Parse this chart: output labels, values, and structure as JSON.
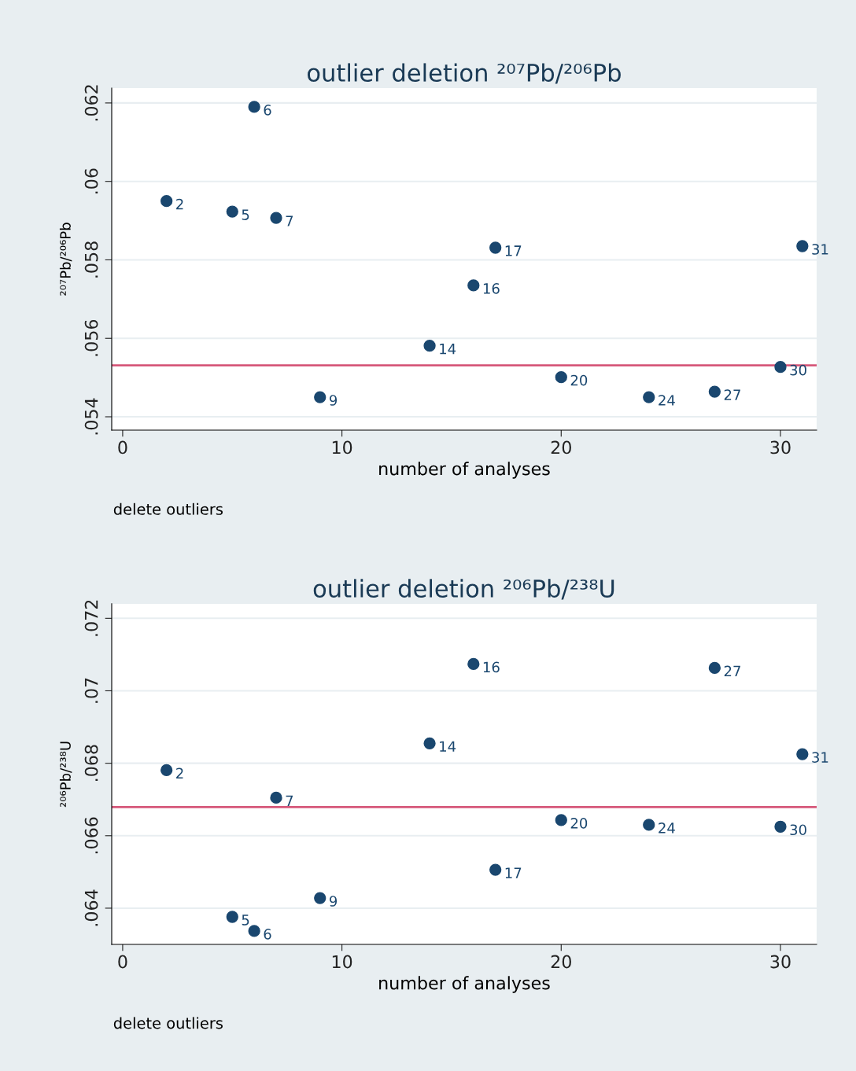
{
  "chart_data": [
    {
      "type": "scatter",
      "title": "outlier deletion ²⁰⁷Pb/²⁰⁶Pb",
      "xlabel": "number of analyses",
      "ylabel": "²⁰⁷Pb/²⁰⁶Pb",
      "x": [
        2,
        5,
        6,
        7,
        9,
        14,
        16,
        17,
        20,
        24,
        27,
        30,
        31
      ],
      "values": [
        0.0595,
        0.05923,
        0.0619,
        0.05907,
        0.0545,
        0.05581,
        0.05735,
        0.05831,
        0.05501,
        0.0545,
        0.05464,
        0.05527,
        0.05835
      ],
      "color": "#1a476f",
      "marker": "circle",
      "xlim": [
        -0.5,
        31.65
      ],
      "xticks": [
        0,
        10,
        20,
        30
      ],
      "ylim": [
        0.05366,
        0.06238
      ],
      "yticks": [
        {
          "value": 0.054,
          "label": ".054"
        },
        {
          "value": 0.056,
          "label": ".056"
        },
        {
          "value": 0.058,
          "label": ".058"
        },
        {
          "value": 0.06,
          "label": ".06"
        },
        {
          "value": 0.062,
          "label": ".062"
        }
      ],
      "grid": "y",
      "ref_lines": [
        {
          "axis": "y",
          "value": 0.05531,
          "color": "#d6587a"
        }
      ],
      "annotations": [
        {
          "text": "2",
          "x": 2,
          "y": 0.0595
        },
        {
          "text": "5",
          "x": 5,
          "y": 0.05923
        },
        {
          "text": "6",
          "x": 6,
          "y": 0.0619
        },
        {
          "text": "7",
          "x": 7,
          "y": 0.05907
        },
        {
          "text": "9",
          "x": 9,
          "y": 0.0545
        },
        {
          "text": "14",
          "x": 14,
          "y": 0.05581
        },
        {
          "text": "16",
          "x": 16,
          "y": 0.05735
        },
        {
          "text": "17",
          "x": 17,
          "y": 0.05831
        },
        {
          "text": "20",
          "x": 20,
          "y": 0.05501
        },
        {
          "text": "24",
          "x": 24,
          "y": 0.0545
        },
        {
          "text": "27",
          "x": 27,
          "y": 0.05464
        },
        {
          "text": "30",
          "x": 30,
          "y": 0.05527
        },
        {
          "text": "31",
          "x": 31,
          "y": 0.05835
        },
        "delete outliers"
      ]
    },
    {
      "type": "scatter",
      "title": "outlier deletion ²⁰⁶Pb/²³⁸U",
      "xlabel": "number of analyses",
      "ylabel": "²⁰⁶Pb/²³⁸U",
      "x": [
        2,
        5,
        6,
        7,
        9,
        14,
        16,
        17,
        20,
        24,
        27,
        30,
        31
      ],
      "values": [
        0.06781,
        0.06376,
        0.06337,
        0.06705,
        0.06428,
        0.06855,
        0.07074,
        0.06506,
        0.06643,
        0.0663,
        0.07063,
        0.06625,
        0.06825
      ],
      "color": "#1a476f",
      "marker": "circle",
      "xlim": [
        -0.5,
        31.65
      ],
      "xticks": [
        0,
        10,
        20,
        30
      ],
      "ylim": [
        0.063,
        0.0724
      ],
      "yticks": [
        {
          "value": 0.064,
          "label": ".064"
        },
        {
          "value": 0.066,
          "label": ".066"
        },
        {
          "value": 0.068,
          "label": ".068"
        },
        {
          "value": 0.07,
          "label": ".07"
        },
        {
          "value": 0.072,
          "label": ".072"
        }
      ],
      "grid": "y",
      "ref_lines": [
        {
          "axis": "y",
          "value": 0.06679,
          "color": "#d6587a"
        }
      ],
      "annotations": [
        {
          "text": "2",
          "x": 2,
          "y": 0.06781
        },
        {
          "text": "5",
          "x": 5,
          "y": 0.06376
        },
        {
          "text": "6",
          "x": 6,
          "y": 0.06337
        },
        {
          "text": "7",
          "x": 7,
          "y": 0.06705
        },
        {
          "text": "9",
          "x": 9,
          "y": 0.06428
        },
        {
          "text": "14",
          "x": 14,
          "y": 0.06855
        },
        {
          "text": "16",
          "x": 16,
          "y": 0.07074
        },
        {
          "text": "17",
          "x": 17,
          "y": 0.06506
        },
        {
          "text": "20",
          "x": 20,
          "y": 0.06643
        },
        {
          "text": "24",
          "x": 24,
          "y": 0.0663
        },
        {
          "text": "27",
          "x": 27,
          "y": 0.07063
        },
        {
          "text": "30",
          "x": 30,
          "y": 0.06625
        },
        {
          "text": "31",
          "x": 31,
          "y": 0.06825
        },
        "delete outliers"
      ]
    }
  ]
}
